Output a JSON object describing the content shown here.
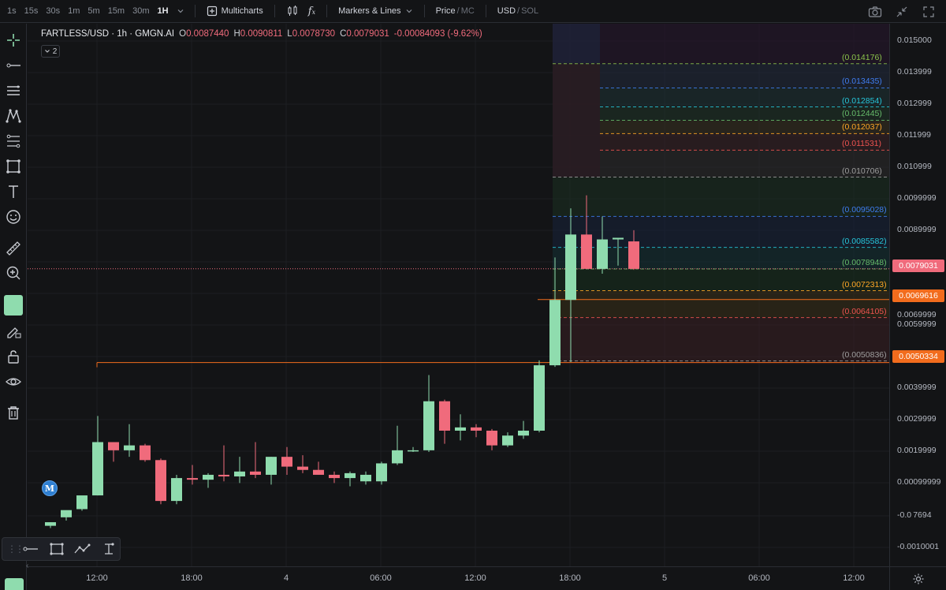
{
  "toolbar": {
    "timeframes": [
      "1s",
      "15s",
      "30s",
      "1m",
      "5m",
      "15m",
      "30m",
      "1H"
    ],
    "active_timeframe": "1H",
    "multicharts_label": "Multicharts",
    "markers_label": "Markers & Lines",
    "price_label": "Price",
    "mc_label": "MC",
    "usd_label": "USD",
    "sol_label": "SOL",
    "sep": "/"
  },
  "legend": {
    "symbol": "FARTLESS/USD · 1h · GMGN.AI",
    "open_key": "O",
    "open": "0.0087440",
    "high_key": "H",
    "high": "0.0090811",
    "low_key": "L",
    "low": "0.0078730",
    "close_key": "C",
    "close": "0.0079031",
    "change": "-0.00084093 (-9.62%)",
    "indicator_count": "2"
  },
  "price_axis": {
    "ticks": [
      "0.015000",
      "0.013999",
      "0.012999",
      "0.011999",
      "0.010999",
      "0.0099999",
      "0.0089999",
      "0.0069999",
      "0.0059999",
      "0.0039999",
      "0.0029999",
      "0.0019999",
      "0.00099999",
      "-0.0 7694",
      "-0.0010001"
    ],
    "badges": [
      {
        "value": "0.0079031",
        "color": "#f06b7c"
      },
      {
        "value": "0.0069616",
        "color": "#f26c1d"
      },
      {
        "value": "0.0050334",
        "color": "#f26c1d"
      }
    ]
  },
  "fib_levels": [
    {
      "label": "(0.014176)",
      "color": "#8bc34a"
    },
    {
      "label": "(0.013435)",
      "color": "#3f7df0"
    },
    {
      "label": "(0.012854)",
      "color": "#26c6da"
    },
    {
      "label": "(0.012445)",
      "color": "#66bb6a"
    },
    {
      "label": "(0.012037)",
      "color": "#ffa726"
    },
    {
      "label": "(0.011531)",
      "color": "#ef5350"
    },
    {
      "label": "(0.010706)",
      "color": "#9e9e9e"
    },
    {
      "label": "(0.0095028)",
      "color": "#3f7df0"
    },
    {
      "label": "(0.0085582)",
      "color": "#26c6da"
    },
    {
      "label": "(0.0078948)",
      "color": "#66bb6a"
    },
    {
      "label": "(0.0072313)",
      "color": "#ffa726"
    },
    {
      "label": "(0.0064105)",
      "color": "#ef5350"
    },
    {
      "label": "(0.0050836)",
      "color": "#9e9e9e"
    }
  ],
  "time_axis": {
    "ticks": [
      "12:00",
      "18:00",
      "4",
      "06:00",
      "12:00",
      "18:00",
      "5",
      "06:00",
      "12:00"
    ]
  },
  "marker": {
    "label": "M"
  },
  "colors": {
    "bull": "#8fdcae",
    "bear": "#f06b7c",
    "background": "#131416",
    "accent_orange": "#f26c1d"
  },
  "chart_data": {
    "type": "candlestick",
    "interval": "1h",
    "candles": [
      {
        "o": 4e-05,
        "h": 0.00015,
        "l": -3e-05,
        "c": 0.00015
      },
      {
        "o": 0.0003,
        "h": 0.0005,
        "l": 0.0002,
        "c": 0.00052
      },
      {
        "o": 0.00055,
        "h": 0.00095,
        "l": 0.0005,
        "c": 0.00097
      },
      {
        "o": 0.00097,
        "h": 0.0034,
        "l": 0.00097,
        "c": 0.0026
      },
      {
        "o": 0.0026,
        "h": 0.0026,
        "l": 0.002,
        "c": 0.00235
      },
      {
        "o": 0.00235,
        "h": 0.00315,
        "l": 0.00215,
        "c": 0.0025
      },
      {
        "o": 0.0025,
        "h": 0.00255,
        "l": 0.002,
        "c": 0.00205
      },
      {
        "o": 0.00205,
        "h": 0.0021,
        "l": 0.0007,
        "c": 0.0008
      },
      {
        "o": 0.0008,
        "h": 0.0016,
        "l": 0.0007,
        "c": 0.0015
      },
      {
        "o": 0.0015,
        "h": 0.0019,
        "l": 0.0013,
        "c": 0.00145
      },
      {
        "o": 0.00145,
        "h": 0.00165,
        "l": 0.0012,
        "c": 0.0016
      },
      {
        "o": 0.0016,
        "h": 0.0025,
        "l": 0.0014,
        "c": 0.00155
      },
      {
        "o": 0.00155,
        "h": 0.00215,
        "l": 0.00135,
        "c": 0.0017
      },
      {
        "o": 0.0017,
        "h": 0.0026,
        "l": 0.0015,
        "c": 0.0016
      },
      {
        "o": 0.0016,
        "h": 0.00215,
        "l": 0.0013,
        "c": 0.00215
      },
      {
        "o": 0.00215,
        "h": 0.00245,
        "l": 0.0016,
        "c": 0.00185
      },
      {
        "o": 0.00185,
        "h": 0.0022,
        "l": 0.00165,
        "c": 0.00175
      },
      {
        "o": 0.00175,
        "h": 0.002,
        "l": 0.0016,
        "c": 0.0016
      },
      {
        "o": 0.0016,
        "h": 0.0017,
        "l": 0.00135,
        "c": 0.0015
      },
      {
        "o": 0.0015,
        "h": 0.0017,
        "l": 0.00125,
        "c": 0.00165
      },
      {
        "o": 0.0014,
        "h": 0.0017,
        "l": 0.0013,
        "c": 0.0016
      },
      {
        "o": 0.0014,
        "h": 0.002,
        "l": 0.0013,
        "c": 0.00195
      },
      {
        "o": 0.00195,
        "h": 0.0031,
        "l": 0.0019,
        "c": 0.00235
      },
      {
        "o": 0.00235,
        "h": 0.00245,
        "l": 0.0023,
        "c": 0.00235
      },
      {
        "o": 0.00235,
        "h": 0.00465,
        "l": 0.0023,
        "c": 0.00385
      },
      {
        "o": 0.00385,
        "h": 0.0039,
        "l": 0.00255,
        "c": 0.00295
      },
      {
        "o": 0.00295,
        "h": 0.00345,
        "l": 0.00265,
        "c": 0.00305
      },
      {
        "o": 0.00305,
        "h": 0.00315,
        "l": 0.00275,
        "c": 0.00295
      },
      {
        "o": 0.00295,
        "h": 0.003,
        "l": 0.00235,
        "c": 0.0025
      },
      {
        "o": 0.0025,
        "h": 0.0029,
        "l": 0.00245,
        "c": 0.0028
      },
      {
        "o": 0.0028,
        "h": 0.00325,
        "l": 0.0027,
        "c": 0.00295
      },
      {
        "o": 0.00295,
        "h": 0.0051,
        "l": 0.0029,
        "c": 0.00495
      },
      {
        "o": 0.00495,
        "h": 0.00825,
        "l": 0.0049,
        "c": 0.00695
      },
      {
        "o": 0.00695,
        "h": 0.00975,
        "l": 0.00505,
        "c": 0.00895
      },
      {
        "o": 0.00895,
        "h": 0.01015,
        "l": 0.0079,
        "c": 0.0079
      },
      {
        "o": 0.0079,
        "h": 0.0095,
        "l": 0.00775,
        "c": 0.0088
      },
      {
        "o": 0.0088,
        "h": 0.00885,
        "l": 0.008,
        "c": 0.00885
      },
      {
        "o": 0.00874,
        "h": 0.00908,
        "l": 0.00787,
        "c": 0.0079
      }
    ],
    "ylim": [
      -0.0012,
      0.0154
    ],
    "price_lines": [
      0.0079031,
      0.0069616,
      0.0050334
    ]
  }
}
